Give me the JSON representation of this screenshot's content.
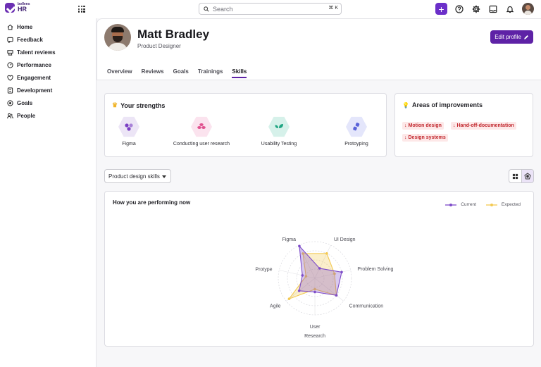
{
  "app": {
    "logo_small": "bollens",
    "logo_big": "HR"
  },
  "search": {
    "placeholder": "Search",
    "shortcut": "⌘ K"
  },
  "topbar": {
    "icons": [
      "apps-icon",
      "plus-icon",
      "help-icon",
      "gear-icon",
      "inbox-icon",
      "bell-icon",
      "avatar"
    ]
  },
  "sidebar": {
    "items": [
      {
        "label": "Home",
        "icon": "home-icon"
      },
      {
        "label": "Feedback",
        "icon": "feedback-icon"
      },
      {
        "label": "Talent reviews",
        "icon": "talent-icon"
      },
      {
        "label": "Performance",
        "icon": "performance-icon"
      },
      {
        "label": "Engagement",
        "icon": "engagement-icon"
      },
      {
        "label": "Development",
        "icon": "development-icon"
      },
      {
        "label": "Goals",
        "icon": "goals-icon"
      },
      {
        "label": "People",
        "icon": "people-icon"
      }
    ]
  },
  "profile": {
    "name": "Matt Bradley",
    "role": "Product Designer",
    "edit_label": "Edit profile"
  },
  "tabs": [
    {
      "label": "Overview",
      "active": false
    },
    {
      "label": "Reviews",
      "active": false
    },
    {
      "label": "Goals",
      "active": false
    },
    {
      "label": "Trainings",
      "active": false
    },
    {
      "label": "Skills",
      "active": true
    }
  ],
  "strengths": {
    "title": "Your strengths",
    "items": [
      {
        "label": "Figma",
        "bg": "#ece5f6",
        "fg": "#7b3fc4"
      },
      {
        "label": "Conducting user research",
        "bg": "#fbe3ee",
        "fg": "#e0528f"
      },
      {
        "label": "Usability Testing",
        "bg": "#d6f1ea",
        "fg": "#1fa582"
      },
      {
        "label": "Protoyping",
        "bg": "#e4e6fb",
        "fg": "#5a63d8"
      }
    ]
  },
  "improvements": {
    "title": "Areas of improvements",
    "chips": [
      "Motion design",
      "Hand-off-documentation",
      "Design systems"
    ]
  },
  "skill_select": {
    "value": "Product design skills"
  },
  "performance": {
    "title": "How you are performing now",
    "legend": [
      {
        "name": "Current",
        "color": "#7e4cc9"
      },
      {
        "name": "Expected",
        "color": "#f3c952"
      }
    ]
  },
  "chart_data": {
    "type": "radar",
    "title": "How you are performing now",
    "axes": [
      "Figma",
      "UI Design",
      "Problem Solving",
      "Communication",
      "User Research",
      "Agile",
      "Protype"
    ],
    "range": [
      0,
      4
    ],
    "series": [
      {
        "name": "Current",
        "color": "#7e4cc9",
        "values": [
          3.9,
          1.2,
          3.0,
          3.0,
          1.5,
          2.2,
          1.4
        ]
      },
      {
        "name": "Expected",
        "color": "#f3c952",
        "values": [
          3.0,
          3.0,
          2.2,
          3.0,
          1.2,
          3.6,
          1.0
        ]
      }
    ]
  }
}
